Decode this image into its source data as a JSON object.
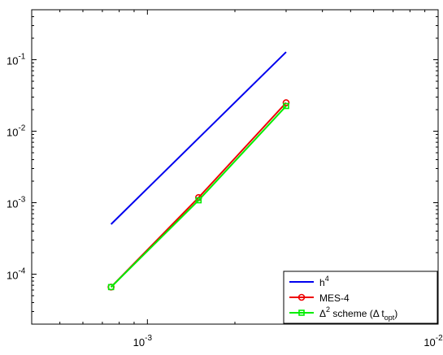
{
  "chart_data": {
    "type": "line",
    "title": "",
    "xlabel": "",
    "ylabel": "",
    "x_scale": "log",
    "y_scale": "log",
    "xlim": [
      0.0004,
      0.01
    ],
    "ylim": [
      2e-05,
      0.5
    ],
    "grid": false,
    "legend_position": "bottom-right",
    "x_ticks": [
      {
        "value": 0.001,
        "base": "10",
        "exp": "-3"
      },
      {
        "value": 0.01,
        "base": "10",
        "exp": "-2"
      }
    ],
    "y_ticks": [
      {
        "value": 0.0001,
        "base": "10",
        "exp": "-4"
      },
      {
        "value": 0.001,
        "base": "10",
        "exp": "-3"
      },
      {
        "value": 0.01,
        "base": "10",
        "exp": "-2"
      },
      {
        "value": 0.1,
        "base": "10",
        "exp": "-1"
      }
    ],
    "series": [
      {
        "name": "h4",
        "legend_parts": [
          "h",
          "4"
        ],
        "color": "#0000ee",
        "marker": "none",
        "x": [
          0.00075,
          0.003
        ],
        "y": [
          0.0005,
          0.128
        ]
      },
      {
        "name": "MES-4",
        "legend_parts": [
          "MES-4"
        ],
        "color": "#ee0000",
        "marker": "circle",
        "x": [
          0.00075,
          0.0015,
          0.003
        ],
        "y": [
          6.6e-05,
          0.00118,
          0.025
        ]
      },
      {
        "name": "Δ2 scheme (Δ topt)",
        "legend_parts": [
          "Δ",
          "2",
          " scheme (Δ t",
          "opt",
          ")"
        ],
        "color": "#00ee00",
        "marker": "square",
        "x": [
          0.00075,
          0.0015,
          0.003
        ],
        "y": [
          6.6e-05,
          0.00108,
          0.0225
        ]
      }
    ]
  }
}
